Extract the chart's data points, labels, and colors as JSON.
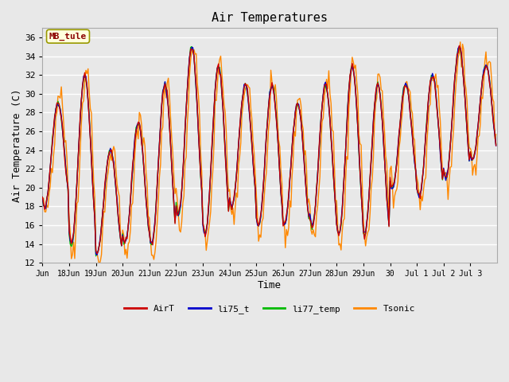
{
  "title": "Air Temperatures",
  "xlabel": "Time",
  "ylabel": "Air Temperature (C)",
  "ylim": [
    12,
    37
  ],
  "yticks": [
    12,
    14,
    16,
    18,
    20,
    22,
    24,
    26,
    28,
    30,
    32,
    34,
    36
  ],
  "bg_color": "#e8e8e8",
  "plot_bg_color": "#e8e8e8",
  "grid_color": "#ffffff",
  "annotation_text": "MB_tule",
  "annotation_color": "#8b0000",
  "annotation_bg": "#ffffdd",
  "annotation_border": "#999900",
  "colors": {
    "AirT": "#cc0000",
    "li75_t": "#0000cc",
    "li77_temp": "#00bb00",
    "Tsonic": "#ff8800"
  },
  "legend_labels": [
    "AirT",
    "li75_t",
    "li77_temp",
    "Tsonic"
  ],
  "font_family": "monospace",
  "figsize": [
    6.4,
    4.8
  ],
  "dpi": 100
}
